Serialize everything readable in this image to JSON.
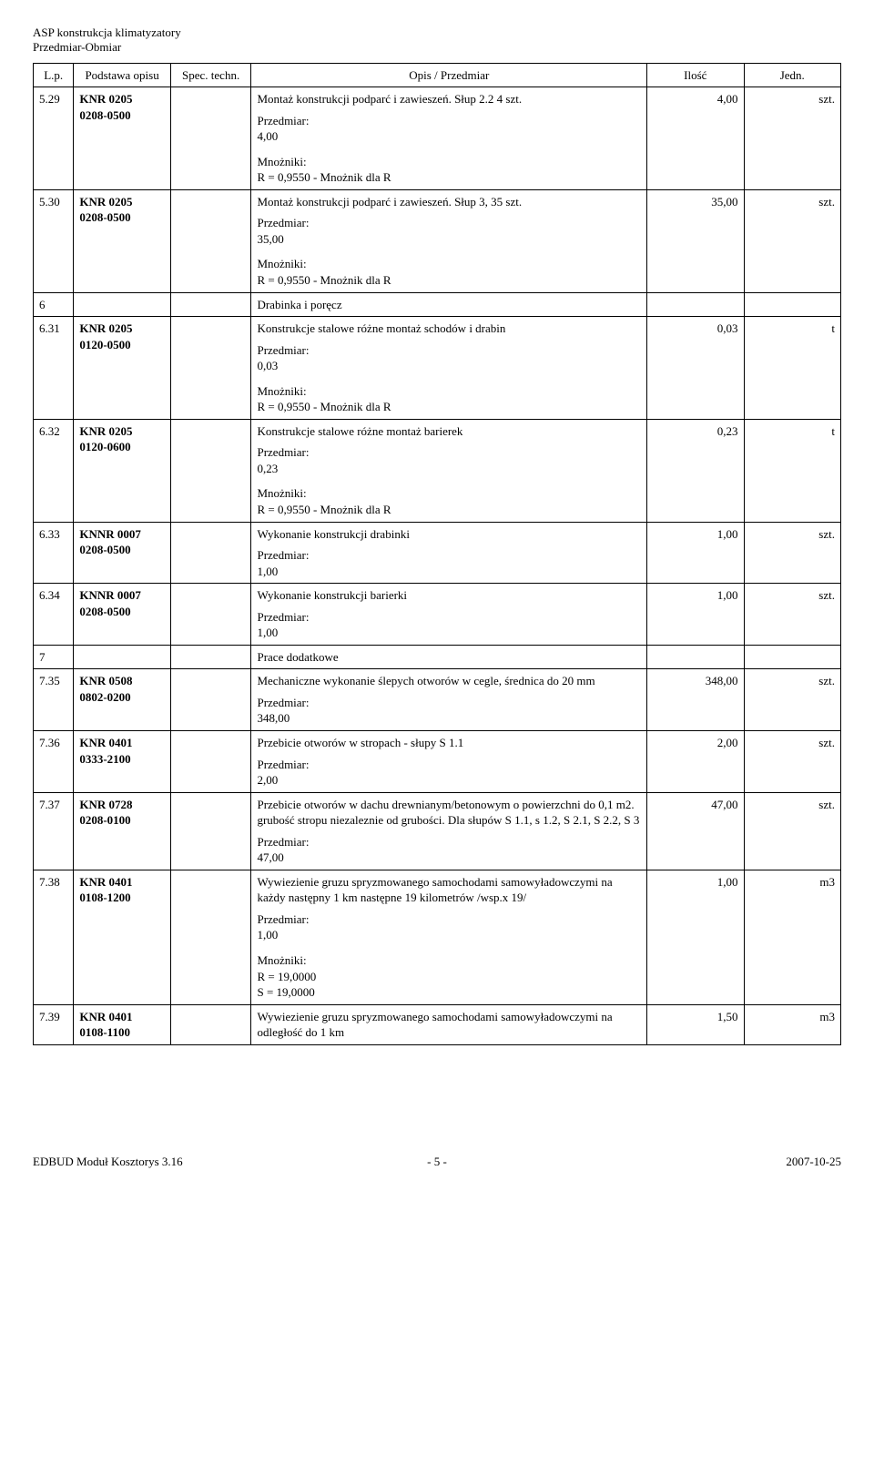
{
  "doc": {
    "title1": "ASP konstrukcja klimatyzatory",
    "title2": "Przedmiar-Obmiar"
  },
  "headers": {
    "lp": "L.p.",
    "base": "Podstawa opisu",
    "spec": "Spec. techn.",
    "desc": "Opis / Przedmiar",
    "qty": "Ilość",
    "unit": "Jedn."
  },
  "labels": {
    "przedmiar": "Przedmiar:",
    "mnozniki": "Mnożniki:"
  },
  "rows": {
    "r529": {
      "lp": "5.29",
      "base1": "KNR 0205",
      "base2": "0208-0500",
      "desc": "Montaż konstrukcji podparć i zawieszeń. Słup 2.2 4 szt.",
      "pval": "4,00",
      "mline": "R = 0,9550 - Mnożnik dla R",
      "qty": "4,00",
      "unit": "szt."
    },
    "r530": {
      "lp": "5.30",
      "base1": "KNR 0205",
      "base2": "0208-0500",
      "desc": "Montaż konstrukcji podparć i zawieszeń. Słup 3,  35 szt.",
      "pval": "35,00",
      "mline": "R = 0,9550 - Mnożnik dla R",
      "qty": "35,00",
      "unit": "szt."
    },
    "sec6": {
      "lp": "6",
      "desc": "Drabinka i poręcz"
    },
    "r631": {
      "lp": "6.31",
      "base1": "KNR 0205",
      "base2": "0120-0500",
      "desc": "Konstrukcje stalowe różne montaż schodów i drabin",
      "pval": "0,03",
      "mline": "R = 0,9550 - Mnożnik dla R",
      "qty": "0,03",
      "unit": "t"
    },
    "r632": {
      "lp": "6.32",
      "base1": "KNR 0205",
      "base2": "0120-0600",
      "desc": "Konstrukcje stalowe różne montaż barierek",
      "pval": "0,23",
      "mline": "R = 0,9550 - Mnożnik dla R",
      "qty": "0,23",
      "unit": "t"
    },
    "r633": {
      "lp": "6.33",
      "base1": "KNNR 0007",
      "base2": "0208-0500",
      "desc": "Wykonanie konstrukcji drabinki",
      "pval": "1,00",
      "qty": "1,00",
      "unit": "szt."
    },
    "r634": {
      "lp": "6.34",
      "base1": "KNNR 0007",
      "base2": "0208-0500",
      "desc": "Wykonanie konstrukcji barierki",
      "pval": "1,00",
      "qty": "1,00",
      "unit": "szt."
    },
    "sec7": {
      "lp": "7",
      "desc": "Prace dodatkowe"
    },
    "r735": {
      "lp": "7.35",
      "base1": "KNR 0508",
      "base2": "0802-0200",
      "desc": "Mechaniczne wykonanie ślepych otworów w cegle, średnica do 20 mm",
      "pval": "348,00",
      "qty": "348,00",
      "unit": "szt."
    },
    "r736": {
      "lp": "7.36",
      "base1": "KNR 0401",
      "base2": "0333-2100",
      "desc": "Przebicie otworów w stropach - słupy S 1.1",
      "pval": "2,00",
      "qty": "2,00",
      "unit": "szt."
    },
    "r737": {
      "lp": "7.37",
      "base1": "KNR 0728",
      "base2": "0208-0100",
      "desc": "Przebicie otworów w dachu drewnianym/betonowym o powierzchni do 0,1 m2. grubość stropu niezaleznie od grubości. Dla słupów S 1.1, s 1.2, S 2.1, S 2.2, S 3",
      "pval": "47,00",
      "qty": "47,00",
      "unit": "szt."
    },
    "r738": {
      "lp": "7.38",
      "base1": "KNR 0401",
      "base2": "0108-1200",
      "desc": "Wywiezienie gruzu spryzmowanego samochodami samowyładowczymi na każdy następny 1 km następne 19 kilometrów /wsp.x 19/",
      "pval": "1,00",
      "mline1": "R = 19,0000",
      "mline2": "S = 19,0000",
      "qty": "1,00",
      "unit": "m3"
    },
    "r739": {
      "lp": "7.39",
      "base1": "KNR 0401",
      "base2": "0108-1100",
      "desc": "Wywiezienie gruzu spryzmowanego samochodami samowyładowczymi na odległość do 1 km",
      "qty": "1,50",
      "unit": "m3"
    }
  },
  "footer": {
    "left": "EDBUD Moduł Kosztorys 3.16",
    "center": "- 5 -",
    "right": "2007-10-25"
  }
}
